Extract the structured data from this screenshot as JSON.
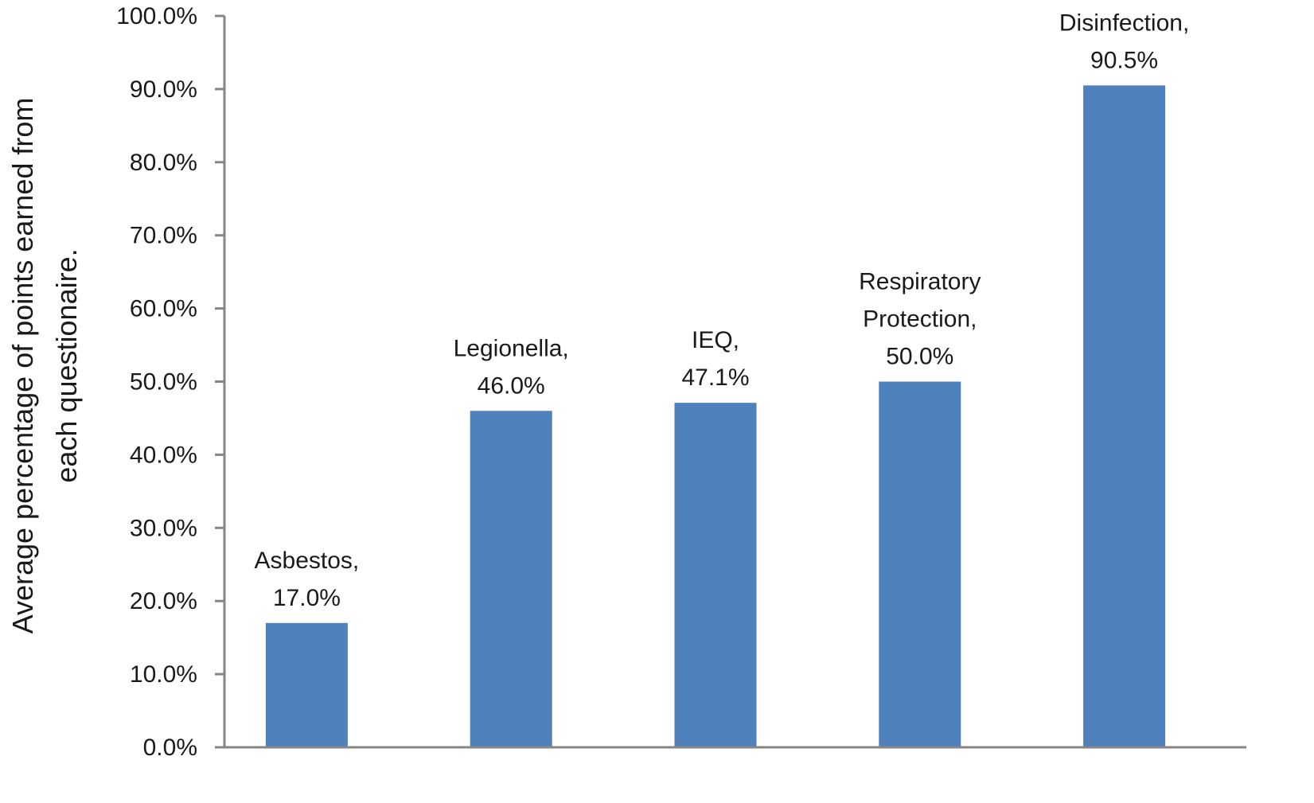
{
  "chart_data": {
    "type": "bar",
    "categories": [
      "Asbestos",
      "Legionella",
      "IEQ",
      "Respiratory Protection",
      "Disinfection"
    ],
    "values": [
      17.0,
      46.0,
      47.1,
      50.0,
      90.5
    ],
    "data_labels": [
      [
        "Asbestos,",
        "17.0%"
      ],
      [
        "Legionella,",
        "46.0%"
      ],
      [
        "IEQ,",
        "47.1%"
      ],
      [
        "Respiratory",
        "Protection,",
        "50.0%"
      ],
      [
        "Disinfection,",
        "90.5%"
      ]
    ],
    "ylabel_lines": [
      "Average percentage of points earned from",
      "each questionaire."
    ],
    "xlabel": "",
    "ylim": [
      0,
      100
    ],
    "yticks": [
      "0.0%",
      "10.0%",
      "20.0%",
      "30.0%",
      "40.0%",
      "50.0%",
      "60.0%",
      "70.0%",
      "80.0%",
      "90.0%",
      "100.0%"
    ],
    "grid": false,
    "legend": "none",
    "bar_color": "#4f81bd",
    "axis_color": "#868686"
  }
}
